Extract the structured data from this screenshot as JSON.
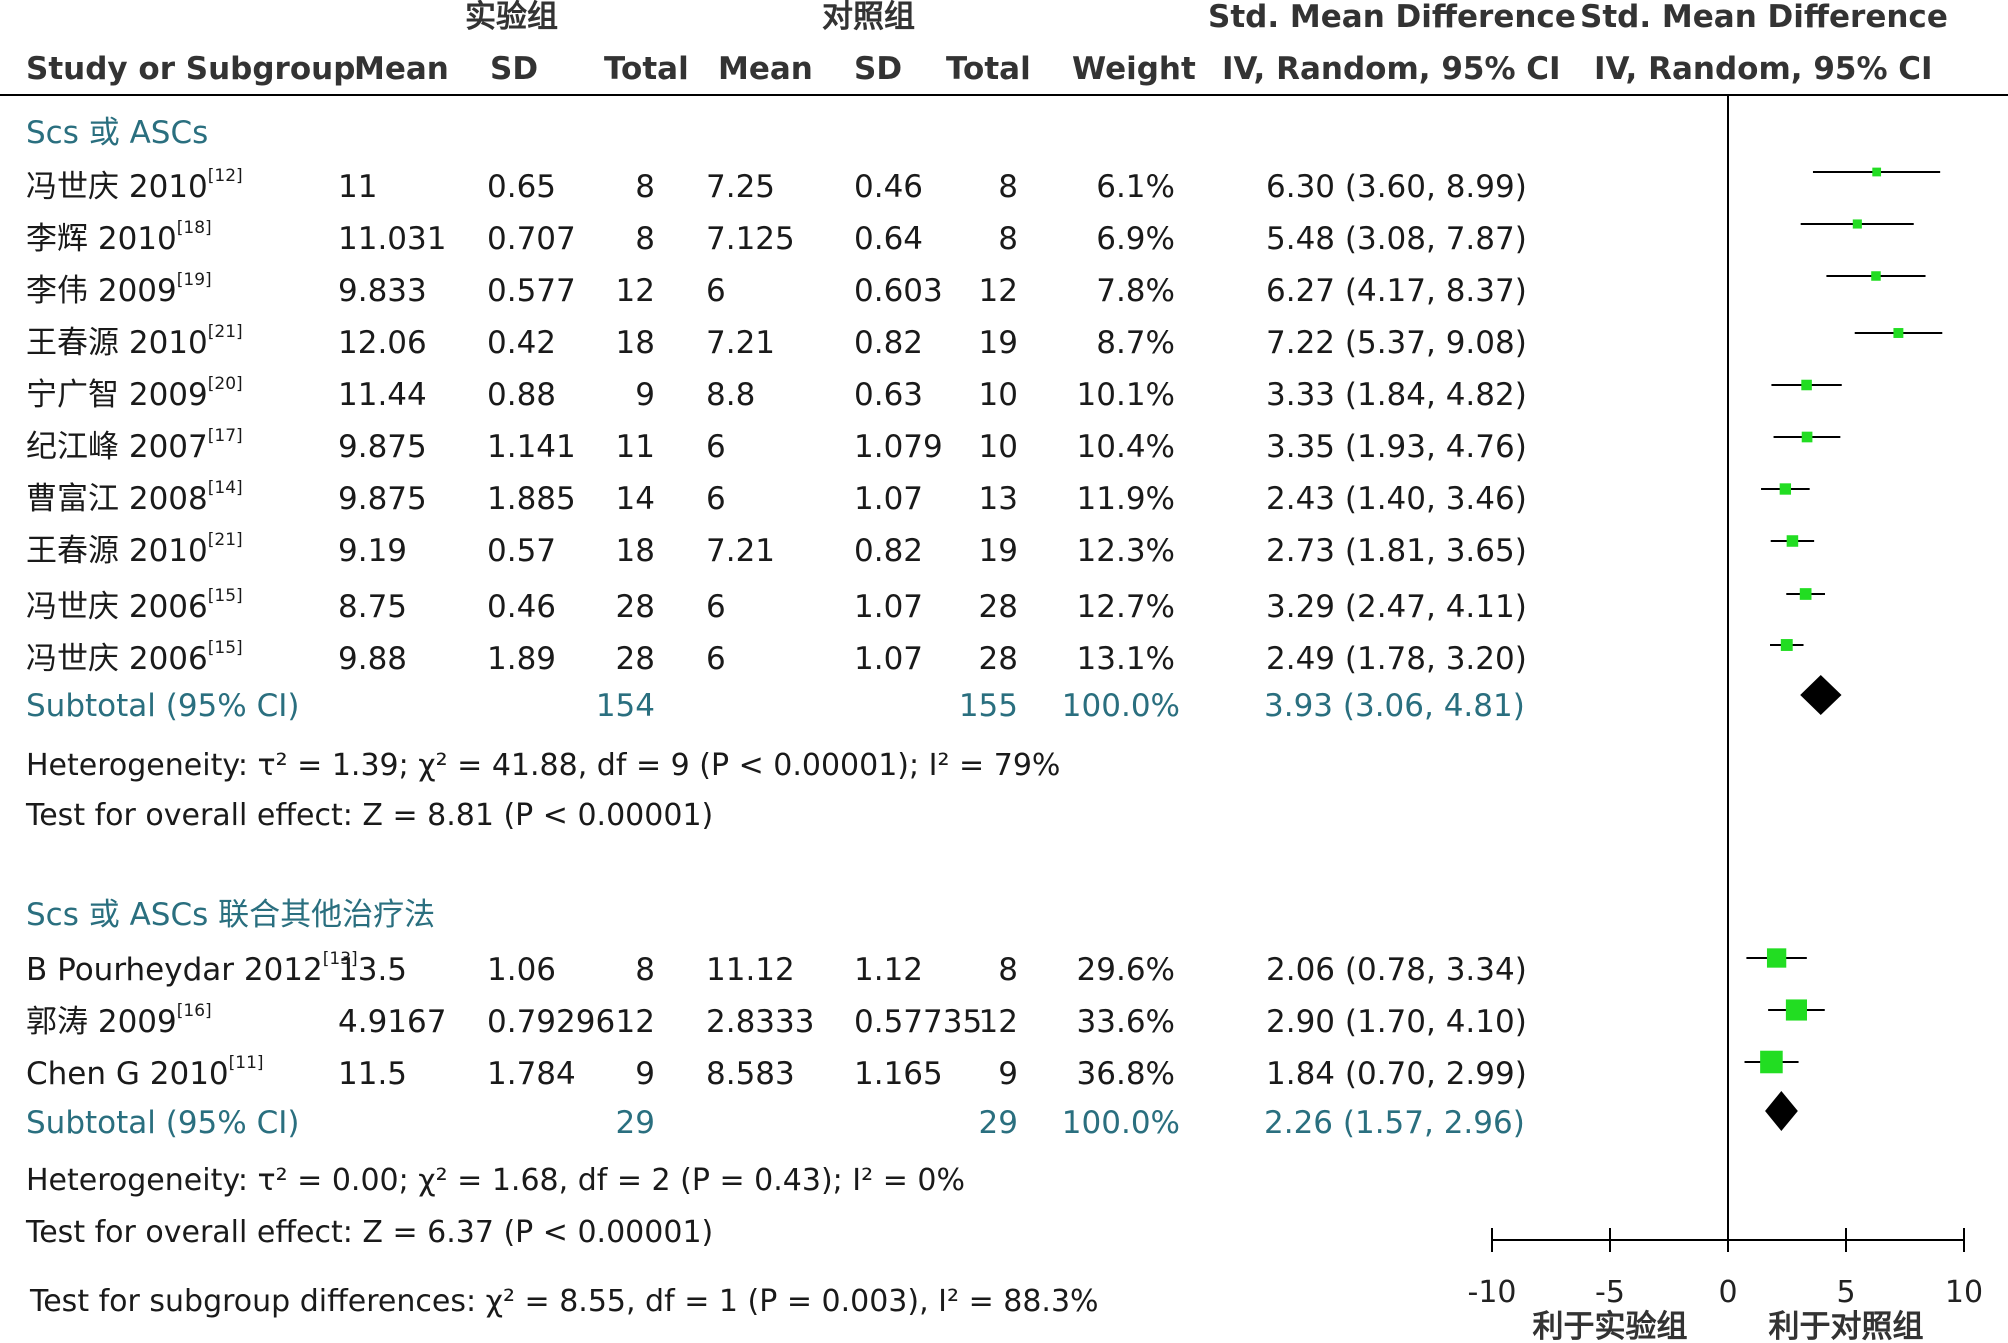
{
  "header": {
    "group_exp": "实验组",
    "group_ctrl": "对照组",
    "smd_title_a": "Std. Mean Difference",
    "smd_title_b": "Std. Mean Difference",
    "cols": [
      "Study or Subgroup",
      "Mean",
      "SD",
      "Total",
      "Mean",
      "SD",
      "Total",
      "Weight",
      "IV, Random, 95% CI",
      "IV, Random, 95% CI"
    ]
  },
  "subgroup1": {
    "title": "Scs 或 ASCs",
    "rows": [
      {
        "name": "冯世庆 2010",
        "ref": "[12]",
        "m1": "11",
        "sd1": "0.65",
        "n1": "8",
        "m2": "7.25",
        "sd2": "0.46",
        "n2": "8",
        "w": "6.1%",
        "ci": "6.30 (3.60, 8.99)"
      },
      {
        "name": "李辉 2010",
        "ref": "[18]",
        "m1": "11.031",
        "sd1": "0.707",
        "n1": "8",
        "m2": "7.125",
        "sd2": "0.64",
        "n2": "8",
        "w": "6.9%",
        "ci": "5.48 (3.08, 7.87)"
      },
      {
        "name": "李伟 2009",
        "ref": "[19]",
        "m1": "9.833",
        "sd1": "0.577",
        "n1": "12",
        "m2": "6",
        "sd2": "0.603",
        "n2": "12",
        "w": "7.8%",
        "ci": "6.27 (4.17, 8.37)"
      },
      {
        "name": "王春源 2010",
        "ref": "[21]",
        "m1": "12.06",
        "sd1": "0.42",
        "n1": "18",
        "m2": "7.21",
        "sd2": "0.82",
        "n2": "19",
        "w": "8.7%",
        "ci": "7.22 (5.37, 9.08)"
      },
      {
        "name": "宁广智 2009",
        "ref": "[20]",
        "m1": "11.44",
        "sd1": "0.88",
        "n1": "9",
        "m2": "8.8",
        "sd2": "0.63",
        "n2": "10",
        "w": "10.1%",
        "ci": "3.33 (1.84, 4.82)"
      },
      {
        "name": "纪江峰 2007",
        "ref": "[17]",
        "m1": "9.875",
        "sd1": "1.141",
        "n1": "11",
        "m2": "6",
        "sd2": "1.079",
        "n2": "10",
        "w": "10.4%",
        "ci": "3.35 (1.93, 4.76)"
      },
      {
        "name": "曹富江 2008",
        "ref": "[14]",
        "m1": "9.875",
        "sd1": "1.885",
        "n1": "14",
        "m2": "6",
        "sd2": "1.07",
        "n2": "13",
        "w": "11.9%",
        "ci": "2.43 (1.40, 3.46)"
      },
      {
        "name": "王春源 2010",
        "ref": "[21]",
        "m1": "9.19",
        "sd1": "0.57",
        "n1": "18",
        "m2": "7.21",
        "sd2": "0.82",
        "n2": "19",
        "w": "12.3%",
        "ci": "2.73 (1.81, 3.65)"
      },
      {
        "name": "冯世庆 2006",
        "ref": "[15]",
        "m1": "8.75",
        "sd1": "0.46",
        "n1": "28",
        "m2": "6",
        "sd2": "1.07",
        "n2": "28",
        "w": "12.7%",
        "ci": "3.29 (2.47, 4.11)"
      },
      {
        "name": "冯世庆 2006",
        "ref": "[15]",
        "m1": "9.88",
        "sd1": "1.89",
        "n1": "28",
        "m2": "6",
        "sd2": "1.07",
        "n2": "28",
        "w": "13.1%",
        "ci": "2.49 (1.78, 3.20)"
      }
    ],
    "subtotal": {
      "label": "Subtotal (95% CI)",
      "n1": "154",
      "n2": "155",
      "w": "100.0%",
      "ci": "3.93 (3.06, 4.81)"
    },
    "heterogeneity": "Heterogeneity: τ² = 1.39; χ² = 41.88, df = 9 (P < 0.00001); I² = 79%",
    "overall": "Test for overall effect: Z = 8.81 (P < 0.00001)"
  },
  "subgroup2": {
    "title": "Scs 或 ASCs 联合其他治疗法",
    "rows": [
      {
        "name": "B Pourheydar 2012",
        "ref": "[13]",
        "m1": "13.5",
        "sd1": "1.06",
        "n1": "8",
        "m2": "11.12",
        "sd2": "1.12",
        "n2": "8",
        "w": "29.6%",
        "ci": "2.06 (0.78, 3.34)"
      },
      {
        "name": "郭涛 2009",
        "ref": "[16]",
        "m1": "4.9167",
        "sd1": "0.79296",
        "n1": "12",
        "m2": "2.8333",
        "sd2": "0.57735",
        "n2": "12",
        "w": "33.6%",
        "ci": "2.90 (1.70, 4.10)"
      },
      {
        "name": "Chen G 2010",
        "ref": "[11]",
        "m1": "11.5",
        "sd1": "1.784",
        "n1": "9",
        "m2": "8.583",
        "sd2": "1.165",
        "n2": "9",
        "w": "36.8%",
        "ci": "1.84 (0.70, 2.99)"
      }
    ],
    "subtotal": {
      "label": "Subtotal (95% CI)",
      "n1": "29",
      "n2": "29",
      "w": "100.0%",
      "ci": "2.26 (1.57, 2.96)"
    },
    "heterogeneity": "Heterogeneity: τ² = 0.00; χ² = 1.68, df = 2 (P = 0.43); I² = 0%",
    "overall": "Test for overall effect: Z = 6.37 (P < 0.00001)"
  },
  "subgroup_test": "Test for subgroup differences: χ² = 8.55, df = 1 (P = 0.003), I² = 88.3%",
  "chart_data": {
    "type": "forest",
    "xlim": [
      -10,
      10
    ],
    "ticks": [
      -10,
      -5,
      0,
      5,
      10
    ],
    "tick_labels": [
      "-10",
      "-5",
      "0",
      "5",
      "10"
    ],
    "favours_left": "利于实验组",
    "favours_right": "利于对照组",
    "marker_color": "#22dd22",
    "line_color": "#000000",
    "studies": [
      {
        "est": 6.3,
        "lo": 3.6,
        "hi": 8.99,
        "w": 6.1
      },
      {
        "est": 5.48,
        "lo": 3.08,
        "hi": 7.87,
        "w": 6.9
      },
      {
        "est": 6.27,
        "lo": 4.17,
        "hi": 8.37,
        "w": 7.8
      },
      {
        "est": 7.22,
        "lo": 5.37,
        "hi": 9.08,
        "w": 8.7
      },
      {
        "est": 3.33,
        "lo": 1.84,
        "hi": 4.82,
        "w": 10.1
      },
      {
        "est": 3.35,
        "lo": 1.93,
        "hi": 4.76,
        "w": 10.4
      },
      {
        "est": 2.43,
        "lo": 1.4,
        "hi": 3.46,
        "w": 11.9
      },
      {
        "est": 2.73,
        "lo": 1.81,
        "hi": 3.65,
        "w": 12.3
      },
      {
        "est": 3.29,
        "lo": 2.47,
        "hi": 4.11,
        "w": 12.7
      },
      {
        "est": 2.49,
        "lo": 1.78,
        "hi": 3.2,
        "w": 13.1
      },
      {
        "diamond": true,
        "est": 3.93,
        "lo": 3.06,
        "hi": 4.81
      },
      {
        "est": 2.06,
        "lo": 0.78,
        "hi": 3.34,
        "w": 29.6
      },
      {
        "est": 2.9,
        "lo": 1.7,
        "hi": 4.1,
        "w": 33.6
      },
      {
        "est": 1.84,
        "lo": 0.7,
        "hi": 2.99,
        "w": 36.8
      },
      {
        "diamond": true,
        "est": 2.26,
        "lo": 1.57,
        "hi": 2.96
      }
    ]
  }
}
